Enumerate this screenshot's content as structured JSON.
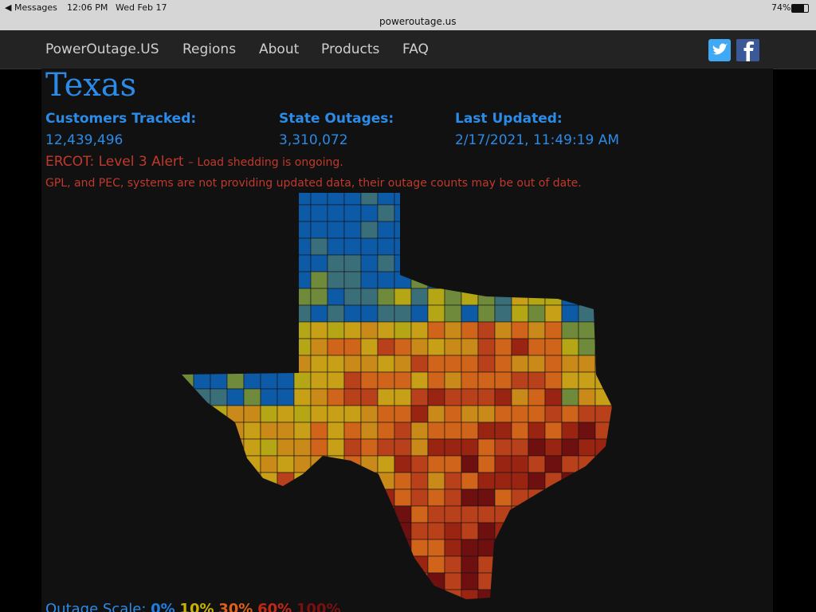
{
  "status_bar": {
    "back": "Messages",
    "time": "12:06 PM",
    "date": "Wed Feb 17",
    "battery": "74%",
    "url": "poweroutage.us"
  },
  "nav": {
    "brand": "PowerOutage.US",
    "links": [
      "Regions",
      "About",
      "Products",
      "FAQ"
    ]
  },
  "state": {
    "title": "Texas",
    "stats": [
      {
        "label": "Customers Tracked:",
        "value": "12,439,496"
      },
      {
        "label": "State Outages:",
        "value": "3,310,072"
      },
      {
        "label": "Last Updated:",
        "value": "2/17/2021, 11:49:19 AM"
      }
    ],
    "alert": {
      "title": "ERCOT: Level 3 Alert",
      "detail": "– Load shedding is ongoing."
    },
    "note": "GPL, and PEC, systems are not providing updated data, their outage counts may be out of date."
  },
  "scale": {
    "label": "Outage Scale:",
    "levels": [
      "0%",
      "10%",
      "30%",
      "60%",
      "100%"
    ]
  }
}
